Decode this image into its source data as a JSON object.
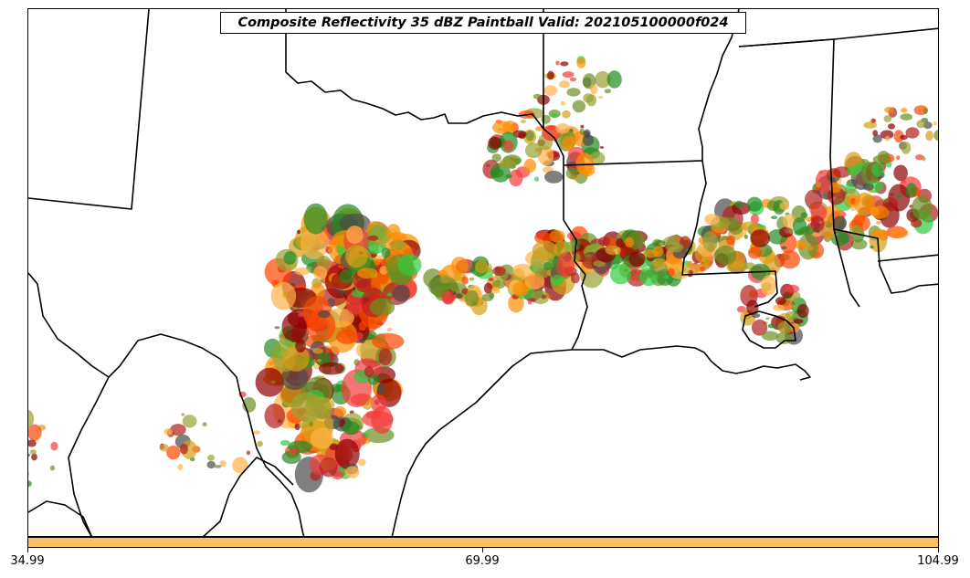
{
  "title": "Composite Reflectivity 35 dBZ Paintball Valid: 202105100000f024",
  "colorbar": {
    "color": "#fdbf63",
    "tick_labels": [
      "34.99",
      "69.99",
      "104.99"
    ]
  },
  "member_colors": [
    "#f43b3b",
    "#ff8c00",
    "#8b0000",
    "#2ecc40",
    "#9aa030",
    "#4a4a4a",
    "#ffb347",
    "#ff4500",
    "#b41e1e",
    "#6b8e23",
    "#228b22",
    "#d4a017"
  ]
}
